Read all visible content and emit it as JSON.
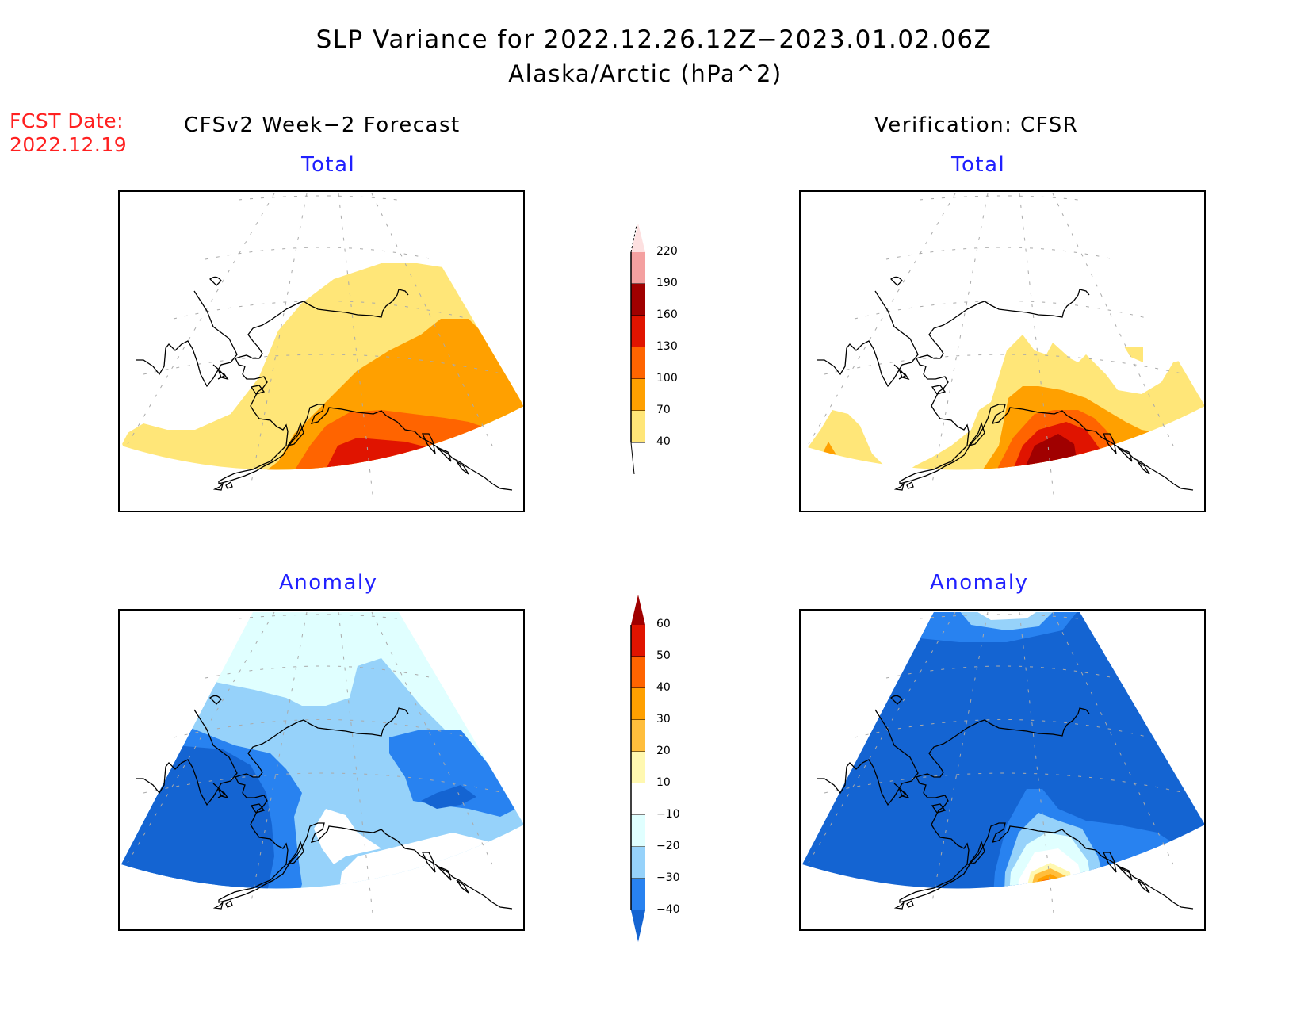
{
  "header": {
    "title": "SLP Variance for 2022.12.26.12Z−2023.01.02.06Z",
    "subtitle": "Alaska/Arctic (hPa^2)"
  },
  "forecast_date": {
    "label": "FCST Date:",
    "value": "2022.12.19"
  },
  "columns": {
    "left_title": "CFSv2 Week−2 Forecast",
    "right_title": "Verification: CFSR"
  },
  "panels": {
    "top_left_label": "Total",
    "top_right_label": "Total",
    "bottom_left_label": "Anomaly",
    "bottom_right_label": "Anomaly"
  },
  "total_colorbar": {
    "labels": [
      "220",
      "190",
      "160",
      "130",
      "100",
      "70",
      "40"
    ],
    "colors": [
      "#fde0e0",
      "#f4a0a0",
      "#a00000",
      "#e01400",
      "#ff6400",
      "#ffa000",
      "#ffe678"
    ],
    "extend_max_color": "#fde0e0"
  },
  "anomaly_colorbar": {
    "labels": [
      "60",
      "50",
      "40",
      "30",
      "20",
      "10",
      "−10",
      "−20",
      "−30",
      "−40"
    ],
    "colors": [
      "#a00000",
      "#e01400",
      "#ff6400",
      "#ffa000",
      "#ffbe3c",
      "#fff8b0",
      "#ffffff",
      "#e0ffff",
      "#96d2fa",
      "#2882f0",
      "#1464d2"
    ]
  },
  "colors": {
    "title_text": "#000000",
    "fcst_text": "#ff2020",
    "panel_label": "#2020ff"
  }
}
